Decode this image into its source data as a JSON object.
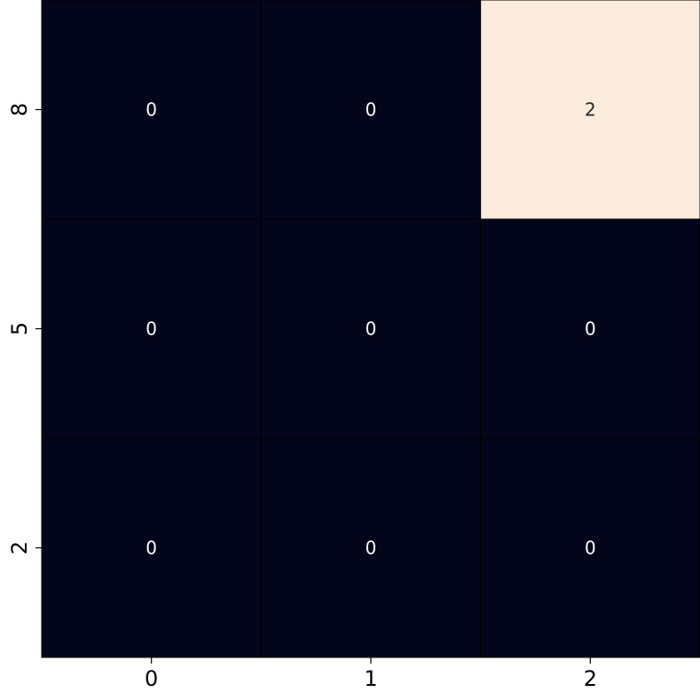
{
  "chart_data": {
    "type": "heatmap",
    "title": "",
    "xlabel": "",
    "ylabel": "",
    "x_tick_labels": [
      "0",
      "1",
      "2"
    ],
    "y_tick_labels": [
      "8",
      "5",
      "2"
    ],
    "values": [
      [
        0,
        0,
        2
      ],
      [
        0,
        0,
        0
      ],
      [
        0,
        0,
        0
      ]
    ],
    "cell_labels": [
      [
        "0",
        "0",
        "2"
      ],
      [
        "0",
        "0",
        "0"
      ],
      [
        "0",
        "0",
        "0"
      ]
    ],
    "color_range": [
      0,
      2
    ],
    "colors": {
      "low": "#03051a",
      "high": "#faebdd",
      "cell_border": "#000000",
      "text_on_dark": "#ffffff",
      "text_on_light": "#262626"
    },
    "grid": false,
    "colorbar": false
  }
}
